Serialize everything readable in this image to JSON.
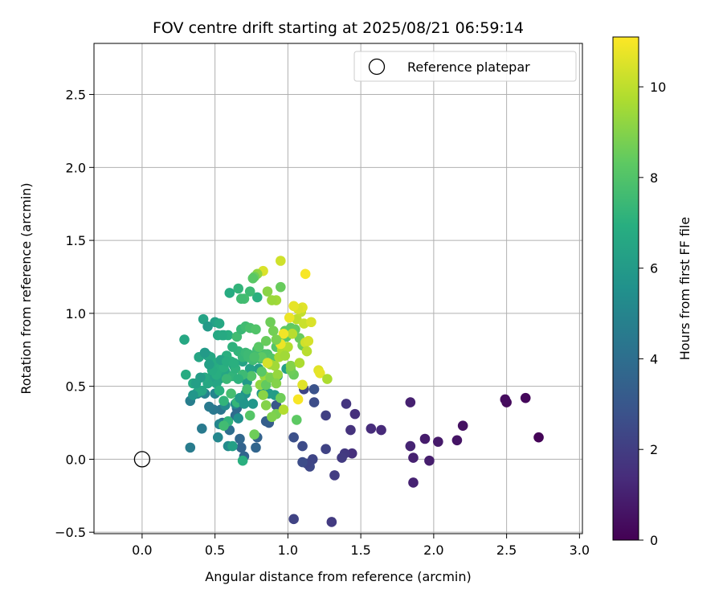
{
  "chart_data": {
    "type": "scatter",
    "title": "FOV centre drift starting at 2025/08/21 06:59:14",
    "xlabel": "Angular distance from reference (arcmin)",
    "ylabel": "Rotation from reference (arcmin)",
    "xlim": [
      -0.33,
      3.02
    ],
    "ylim": [
      -0.51,
      2.85
    ],
    "xticks": [
      0.0,
      0.5,
      1.0,
      1.5,
      2.0,
      2.5,
      3.0
    ],
    "xtick_labels": [
      "0.0",
      "0.5",
      "1.0",
      "1.5",
      "2.0",
      "2.5",
      "3.0"
    ],
    "yticks": [
      -0.5,
      0.0,
      0.5,
      1.0,
      1.5,
      2.0,
      2.5
    ],
    "ytick_labels": [
      "−0.5",
      "0.0",
      "0.5",
      "1.0",
      "1.5",
      "2.0",
      "2.5"
    ],
    "grid": true,
    "legend": {
      "position": "top-right",
      "entries": [
        "Reference platepar"
      ]
    },
    "reference_point": {
      "x": 0.0,
      "y": 0.0
    },
    "colorbar": {
      "label": "Hours from first FF file",
      "range": [
        0,
        11.1
      ],
      "ticks": [
        0,
        2,
        4,
        6,
        8,
        10
      ],
      "colormap": "viridis"
    },
    "series": [
      {
        "points": [
          [
            2.72,
            0.15,
            0.1
          ],
          [
            2.63,
            0.42,
            0.2
          ],
          [
            2.5,
            0.39,
            0.3
          ],
          [
            2.49,
            0.41,
            0.35
          ],
          [
            2.2,
            0.23,
            0.5
          ],
          [
            2.16,
            0.13,
            0.6
          ],
          [
            2.03,
            0.12,
            0.8
          ],
          [
            1.97,
            -0.01,
            0.9
          ],
          [
            1.94,
            0.14,
            0.85
          ],
          [
            1.86,
            0.01,
            1.0
          ],
          [
            1.86,
            -0.16,
            1.05
          ],
          [
            1.84,
            0.09,
            1.1
          ],
          [
            1.84,
            0.39,
            1.0
          ],
          [
            1.64,
            0.2,
            1.3
          ],
          [
            1.57,
            0.21,
            1.4
          ],
          [
            1.46,
            0.31,
            1.5
          ],
          [
            1.44,
            0.04,
            1.5
          ],
          [
            1.43,
            0.2,
            1.6
          ],
          [
            1.4,
            0.38,
            1.7
          ],
          [
            1.39,
            0.04,
            1.8
          ],
          [
            1.37,
            0.01,
            1.9
          ],
          [
            1.32,
            -0.11,
            2.0
          ],
          [
            1.3,
            -0.43,
            1.9
          ],
          [
            1.26,
            0.3,
            2.1
          ],
          [
            1.26,
            0.07,
            2.2
          ],
          [
            1.17,
            0.0,
            2.3
          ],
          [
            1.15,
            -0.05,
            2.4
          ],
          [
            1.13,
            -0.03,
            2.3
          ],
          [
            1.1,
            0.09,
            2.5
          ],
          [
            1.1,
            -0.02,
            2.6
          ],
          [
            1.11,
            0.48,
            2.3
          ],
          [
            1.18,
            0.39,
            2.6
          ],
          [
            1.18,
            0.48,
            2.8
          ],
          [
            1.04,
            0.15,
            2.7
          ],
          [
            1.04,
            -0.41,
            2.2
          ],
          [
            0.92,
            0.37,
            3.0
          ],
          [
            0.87,
            0.25,
            3.2
          ],
          [
            0.85,
            0.26,
            3.3
          ],
          [
            0.79,
            0.15,
            3.5
          ],
          [
            0.78,
            0.08,
            3.6
          ],
          [
            0.68,
            0.08,
            3.5
          ],
          [
            0.7,
            0.02,
            3.6
          ],
          [
            0.67,
            0.14,
            3.7
          ],
          [
            0.65,
            0.35,
            3.8
          ],
          [
            0.64,
            0.3,
            3.9
          ],
          [
            0.6,
            0.2,
            4.0
          ],
          [
            0.55,
            0.25,
            4.1
          ],
          [
            0.54,
            0.34,
            4.3
          ],
          [
            0.49,
            0.34,
            4.4
          ],
          [
            0.46,
            0.36,
            4.5
          ],
          [
            0.41,
            0.21,
            4.5
          ],
          [
            0.33,
            0.4,
            4.7
          ],
          [
            0.33,
            0.08,
            4.6
          ],
          [
            0.38,
            0.45,
            4.8
          ],
          [
            0.43,
            0.45,
            4.9
          ],
          [
            0.5,
            0.45,
            5.0
          ],
          [
            0.52,
            0.15,
            5.1
          ],
          [
            0.53,
            0.24,
            5.0
          ],
          [
            0.59,
            0.09,
            5.3
          ],
          [
            0.57,
            0.37,
            5.2
          ],
          [
            0.64,
            0.38,
            5.3
          ],
          [
            0.66,
            0.28,
            5.5
          ],
          [
            0.69,
            0.4,
            5.6
          ],
          [
            0.71,
            0.45,
            5.7
          ],
          [
            0.76,
            0.38,
            5.8
          ],
          [
            0.82,
            0.45,
            5.9
          ],
          [
            0.87,
            0.45,
            6.0
          ],
          [
            0.91,
            0.44,
            6.1
          ],
          [
            0.99,
            0.62,
            6.2
          ],
          [
            0.93,
            0.57,
            6.3
          ],
          [
            0.8,
            0.62,
            6.1
          ],
          [
            0.72,
            0.53,
            6.0
          ],
          [
            0.74,
            0.62,
            6.3
          ],
          [
            0.69,
            0.67,
            6.4
          ],
          [
            0.63,
            0.64,
            6.2
          ],
          [
            0.6,
            0.57,
            6.4
          ],
          [
            0.57,
            0.6,
            6.5
          ],
          [
            0.55,
            0.56,
            6.6
          ],
          [
            0.53,
            0.55,
            6.4
          ],
          [
            0.51,
            0.52,
            6.5
          ],
          [
            0.47,
            0.56,
            6.3
          ],
          [
            0.45,
            0.52,
            6.6
          ],
          [
            0.43,
            0.56,
            6.7
          ],
          [
            0.41,
            0.47,
            6.5
          ],
          [
            0.38,
            0.46,
            6.6
          ],
          [
            0.35,
            0.52,
            6.7
          ],
          [
            0.3,
            0.58,
            6.8
          ],
          [
            0.29,
            0.82,
            6.6
          ],
          [
            0.39,
            0.7,
            6.5
          ],
          [
            0.42,
            0.96,
            6.4
          ],
          [
            0.45,
            0.71,
            6.4
          ],
          [
            0.47,
            0.7,
            6.6
          ],
          [
            0.49,
            0.65,
            6.7
          ],
          [
            0.51,
            0.66,
            6.8
          ],
          [
            0.53,
            0.62,
            6.9
          ],
          [
            0.56,
            0.63,
            7.0
          ],
          [
            0.58,
            0.71,
            7.0
          ],
          [
            0.61,
            0.67,
            7.1
          ],
          [
            0.62,
            0.57,
            7.2
          ],
          [
            0.64,
            0.62,
            7.1
          ],
          [
            0.66,
            0.74,
            7.2
          ],
          [
            0.69,
            0.7,
            7.3
          ],
          [
            0.71,
            0.73,
            7.4
          ],
          [
            0.73,
            0.7,
            7.5
          ],
          [
            0.76,
            0.68,
            7.6
          ],
          [
            0.79,
            0.75,
            7.6
          ],
          [
            0.81,
            0.69,
            7.7
          ],
          [
            0.84,
            0.72,
            7.8
          ],
          [
            0.86,
            0.72,
            7.9
          ],
          [
            0.89,
            0.69,
            8.0
          ],
          [
            0.92,
            0.77,
            8.1
          ],
          [
            0.95,
            0.8,
            8.1
          ],
          [
            0.99,
            0.84,
            8.2
          ],
          [
            0.98,
            0.88,
            8.3
          ],
          [
            1.02,
            0.9,
            8.3
          ],
          [
            1.05,
            0.89,
            8.4
          ],
          [
            1.08,
            0.83,
            8.5
          ],
          [
            1.1,
            0.78,
            8.6
          ],
          [
            1.04,
            0.58,
            8.5
          ],
          [
            1.02,
            0.61,
            8.6
          ],
          [
            1.06,
            0.27,
            8.3
          ],
          [
            0.95,
            0.42,
            8.6
          ],
          [
            0.92,
            0.31,
            8.8
          ],
          [
            0.89,
            0.29,
            8.9
          ],
          [
            0.85,
            0.37,
            9.0
          ],
          [
            0.83,
            0.44,
            9.1
          ],
          [
            0.81,
            0.51,
            9.2
          ],
          [
            0.84,
            0.57,
            9.3
          ],
          [
            0.86,
            0.56,
            9.4
          ],
          [
            0.88,
            0.65,
            9.4
          ],
          [
            0.91,
            0.64,
            9.5
          ],
          [
            0.94,
            0.7,
            9.6
          ],
          [
            0.96,
            0.75,
            9.7
          ],
          [
            1.0,
            0.77,
            9.8
          ],
          [
            1.03,
            0.86,
            9.9
          ],
          [
            1.06,
            0.96,
            10.0
          ],
          [
            1.09,
            1.01,
            10.1
          ],
          [
            1.11,
            0.93,
            10.2
          ],
          [
            1.12,
            0.8,
            10.3
          ],
          [
            1.14,
            0.81,
            10.4
          ],
          [
            1.16,
            0.94,
            10.5
          ],
          [
            1.21,
            0.61,
            10.6
          ],
          [
            1.22,
            0.59,
            10.7
          ],
          [
            1.1,
            1.04,
            10.6
          ],
          [
            1.07,
            1.03,
            10.5
          ],
          [
            1.04,
            1.05,
            10.7
          ],
          [
            1.01,
            0.97,
            10.8
          ],
          [
            0.97,
            0.86,
            10.9
          ],
          [
            0.95,
            0.79,
            10.8
          ],
          [
            0.92,
            1.09,
            9.5
          ],
          [
            0.89,
            1.09,
            9.4
          ],
          [
            0.86,
            1.15,
            9.1
          ],
          [
            0.83,
            1.29,
            10.5
          ],
          [
            0.79,
            1.27,
            9.2
          ],
          [
            0.77,
            1.25,
            8.6
          ],
          [
            0.76,
            1.24,
            8.2
          ],
          [
            0.79,
            1.11,
            7.0
          ],
          [
            0.74,
            1.15,
            7.5
          ],
          [
            0.7,
            1.1,
            7.7
          ],
          [
            0.68,
            1.1,
            7.6
          ],
          [
            0.66,
            1.17,
            7.2
          ],
          [
            0.6,
            1.14,
            6.8
          ],
          [
            0.5,
            0.94,
            6.3
          ],
          [
            0.53,
            0.93,
            6.6
          ],
          [
            0.56,
            0.85,
            6.8
          ],
          [
            0.59,
            0.85,
            6.9
          ],
          [
            0.62,
            0.77,
            7.1
          ],
          [
            0.65,
            0.84,
            7.6
          ],
          [
            0.68,
            0.89,
            7.4
          ],
          [
            0.71,
            0.91,
            7.6
          ],
          [
            0.74,
            0.9,
            7.8
          ],
          [
            0.78,
            0.89,
            8.0
          ],
          [
            0.8,
            0.77,
            8.2
          ],
          [
            0.82,
            0.7,
            8.3
          ],
          [
            0.85,
            0.81,
            8.5
          ],
          [
            0.88,
            0.94,
            8.6
          ],
          [
            0.9,
            0.88,
            8.7
          ],
          [
            0.92,
            0.82,
            8.8
          ],
          [
            0.95,
            1.18,
            8.5
          ],
          [
            0.95,
            1.36,
            10.3
          ],
          [
            1.12,
            1.27,
            11.0
          ],
          [
            1.07,
            0.41,
            11.0
          ],
          [
            1.1,
            0.51,
            10.6
          ],
          [
            1.27,
            0.55,
            9.7
          ],
          [
            0.75,
            0.57,
            8.0
          ],
          [
            0.77,
            0.17,
            8.6
          ],
          [
            0.74,
            0.3,
            8.1
          ],
          [
            0.72,
            0.48,
            7.7
          ],
          [
            0.69,
            0.58,
            7.5
          ],
          [
            0.65,
            0.39,
            7.3
          ],
          [
            0.61,
            0.45,
            7.7
          ],
          [
            0.58,
            0.55,
            7.4
          ],
          [
            0.56,
            0.4,
            7.2
          ],
          [
            0.53,
            0.47,
            7.0
          ],
          [
            0.51,
            0.58,
            6.9
          ],
          [
            0.48,
            0.61,
            6.8
          ],
          [
            0.46,
            0.65,
            6.2
          ],
          [
            0.45,
            0.91,
            6.0
          ],
          [
            0.43,
            0.73,
            6.0
          ],
          [
            0.4,
            0.56,
            6.1
          ],
          [
            0.37,
            0.52,
            6.2
          ],
          [
            0.35,
            0.44,
            5.8
          ],
          [
            0.59,
            0.26,
            7.2
          ],
          [
            0.56,
            0.23,
            7.6
          ],
          [
            0.54,
            0.68,
            6.4
          ],
          [
            0.52,
            0.85,
            6.6
          ],
          [
            0.55,
            0.85,
            6.7
          ],
          [
            0.58,
            0.67,
            6.9
          ],
          [
            0.63,
            0.66,
            7.0
          ],
          [
            0.66,
            0.55,
            7.1
          ],
          [
            0.67,
            0.42,
            6.0
          ],
          [
            0.7,
            0.38,
            5.8
          ],
          [
            0.73,
            0.72,
            7.5
          ],
          [
            0.77,
            0.7,
            7.8
          ],
          [
            0.82,
            0.6,
            8.2
          ],
          [
            0.85,
            0.51,
            8.4
          ],
          [
            0.88,
            0.56,
            8.8
          ],
          [
            0.93,
            0.58,
            9.3
          ],
          [
            0.98,
            0.71,
            9.5
          ],
          [
            1.02,
            0.64,
            9.0
          ],
          [
            1.08,
            0.66,
            9.7
          ],
          [
            1.13,
            0.74,
            9.9
          ],
          [
            0.86,
            0.66,
            10.4
          ],
          [
            0.92,
            0.52,
            9.0
          ],
          [
            0.62,
            0.09,
            6.2
          ],
          [
            0.69,
            -0.01,
            7.0
          ],
          [
            0.97,
            0.34,
            9.8
          ]
        ]
      }
    ]
  }
}
